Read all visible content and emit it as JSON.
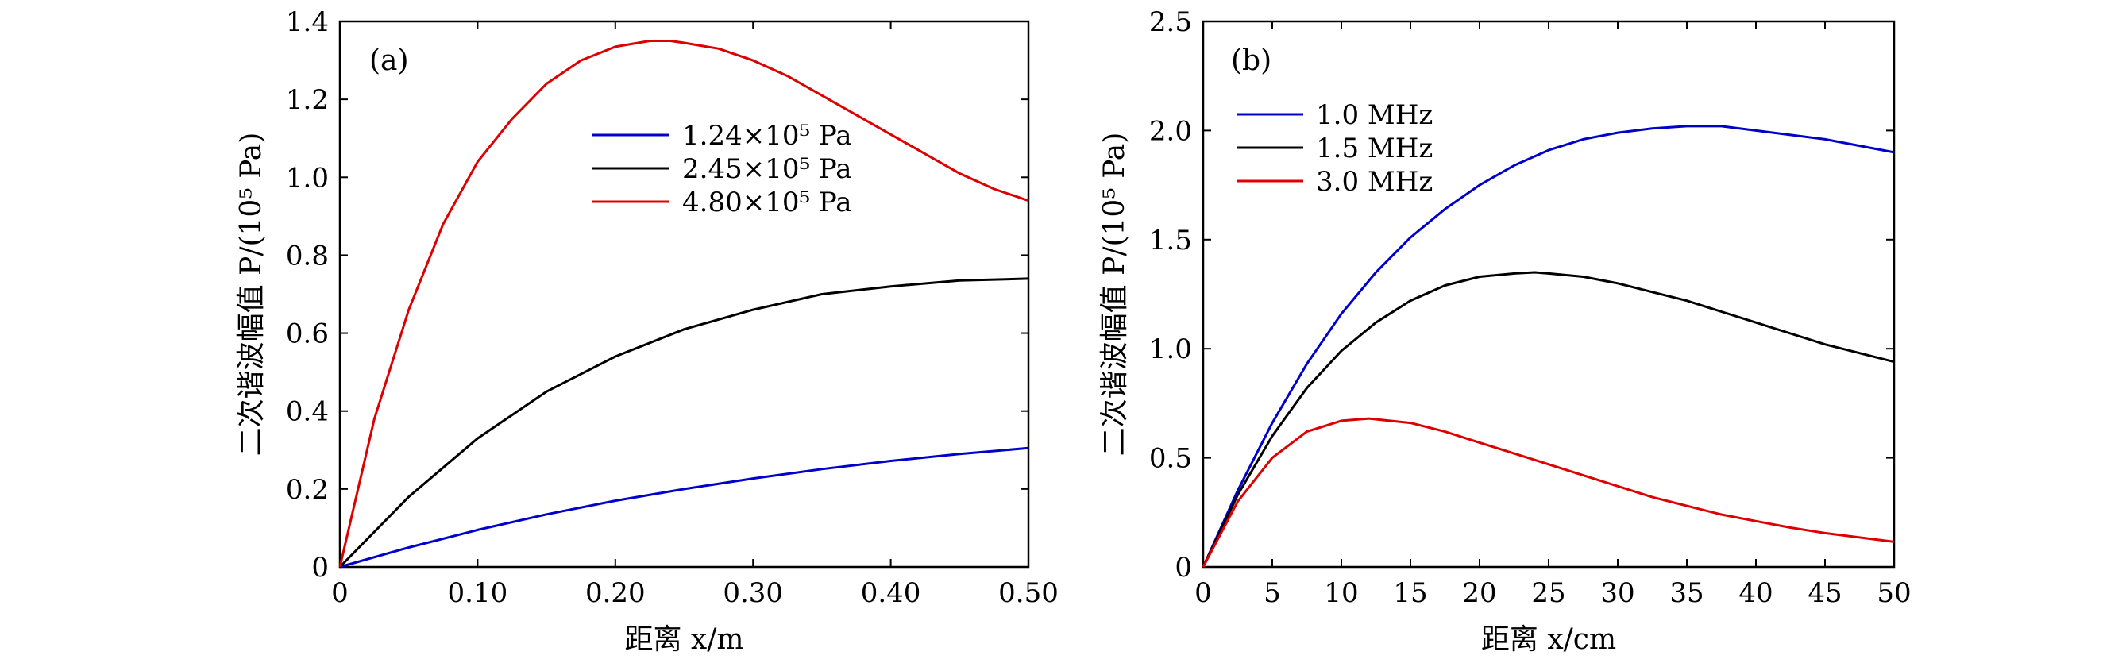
{
  "chart_data": [
    {
      "type": "line",
      "panel_label": "(a)",
      "xlabel": "距离 x/m",
      "ylabel": "二次谐波幅值 P/(10⁵ Pa)",
      "xlim": [
        0,
        0.5
      ],
      "ylim": [
        0,
        1.4
      ],
      "xticks": [
        0,
        0.1,
        0.2,
        0.3,
        0.4,
        0.5
      ],
      "xtick_labels": [
        "0",
        "0.10",
        "0.20",
        "0.30",
        "0.40",
        "0.50"
      ],
      "yticks": [
        0,
        0.2,
        0.4,
        0.6,
        0.8,
        1.0,
        1.2,
        1.4
      ],
      "ytick_labels": [
        "0",
        "0.2",
        "0.4",
        "0.6",
        "0.8",
        "1.0",
        "1.2",
        "1.4"
      ],
      "legend_position": "upper-center",
      "series": [
        {
          "name": "1.24×10⁵ Pa",
          "color": "#0000cc",
          "x": [
            0,
            0.05,
            0.1,
            0.15,
            0.2,
            0.25,
            0.3,
            0.35,
            0.4,
            0.45,
            0.5
          ],
          "y": [
            0,
            0.05,
            0.095,
            0.135,
            0.17,
            0.2,
            0.227,
            0.251,
            0.272,
            0.29,
            0.305
          ]
        },
        {
          "name": "2.45×10⁵ Pa",
          "color": "#000000",
          "x": [
            0,
            0.05,
            0.1,
            0.15,
            0.2,
            0.25,
            0.3,
            0.35,
            0.4,
            0.45,
            0.5
          ],
          "y": [
            0,
            0.18,
            0.33,
            0.45,
            0.54,
            0.61,
            0.66,
            0.7,
            0.72,
            0.735,
            0.74
          ]
        },
        {
          "name": "4.80×10⁵ Pa",
          "color": "#dd0000",
          "x": [
            0,
            0.025,
            0.05,
            0.075,
            0.1,
            0.125,
            0.15,
            0.175,
            0.2,
            0.225,
            0.24,
            0.25,
            0.275,
            0.3,
            0.325,
            0.35,
            0.375,
            0.4,
            0.425,
            0.45,
            0.475,
            0.5
          ],
          "y": [
            0,
            0.38,
            0.66,
            0.88,
            1.04,
            1.15,
            1.24,
            1.3,
            1.335,
            1.35,
            1.35,
            1.345,
            1.33,
            1.3,
            1.26,
            1.21,
            1.16,
            1.11,
            1.06,
            1.01,
            0.97,
            0.94
          ]
        }
      ]
    },
    {
      "type": "line",
      "panel_label": "(b)",
      "xlabel": "距离 x/cm",
      "ylabel": "二次谐波幅值 P/(10⁵ Pa)",
      "xlim": [
        0,
        50
      ],
      "ylim": [
        0,
        2.5
      ],
      "xticks": [
        0,
        5,
        10,
        15,
        20,
        25,
        30,
        35,
        40,
        45,
        50
      ],
      "xtick_labels": [
        "0",
        "5",
        "10",
        "15",
        "20",
        "25",
        "30",
        "35",
        "40",
        "45",
        "50"
      ],
      "yticks": [
        0,
        0.5,
        1.0,
        1.5,
        2.0,
        2.5
      ],
      "ytick_labels": [
        "0",
        "0.5",
        "1.0",
        "1.5",
        "2.0",
        "2.5"
      ],
      "legend_position": "upper-left",
      "series": [
        {
          "name": "1.0 MHz",
          "color": "#0000cc",
          "x": [
            0,
            2.5,
            5,
            7.5,
            10,
            12.5,
            15,
            17.5,
            20,
            22.5,
            25,
            27.5,
            30,
            32.5,
            35,
            37.5,
            40,
            42.5,
            45,
            47.5,
            50
          ],
          "y": [
            0,
            0.35,
            0.66,
            0.93,
            1.16,
            1.35,
            1.51,
            1.64,
            1.75,
            1.84,
            1.91,
            1.96,
            1.99,
            2.01,
            2.02,
            2.02,
            2.0,
            1.98,
            1.96,
            1.93,
            1.9
          ]
        },
        {
          "name": "1.5 MHz",
          "color": "#000000",
          "x": [
            0,
            2.5,
            5,
            7.5,
            10,
            12.5,
            15,
            17.5,
            20,
            22.5,
            24,
            25,
            27.5,
            30,
            32.5,
            35,
            37.5,
            40,
            42.5,
            45,
            47.5,
            50
          ],
          "y": [
            0,
            0.33,
            0.6,
            0.82,
            0.99,
            1.12,
            1.22,
            1.29,
            1.33,
            1.345,
            1.35,
            1.345,
            1.33,
            1.3,
            1.26,
            1.22,
            1.17,
            1.12,
            1.07,
            1.02,
            0.98,
            0.94
          ]
        },
        {
          "name": "3.0 MHz",
          "color": "#dd0000",
          "x": [
            0,
            2.5,
            5,
            7.5,
            10,
            12,
            15,
            17.5,
            20,
            22.5,
            25,
            27.5,
            30,
            32.5,
            35,
            37.5,
            40,
            42.5,
            45,
            47.5,
            50
          ],
          "y": [
            0,
            0.3,
            0.5,
            0.62,
            0.67,
            0.68,
            0.66,
            0.62,
            0.57,
            0.52,
            0.47,
            0.42,
            0.37,
            0.32,
            0.28,
            0.24,
            0.21,
            0.18,
            0.155,
            0.135,
            0.115
          ]
        }
      ]
    }
  ]
}
